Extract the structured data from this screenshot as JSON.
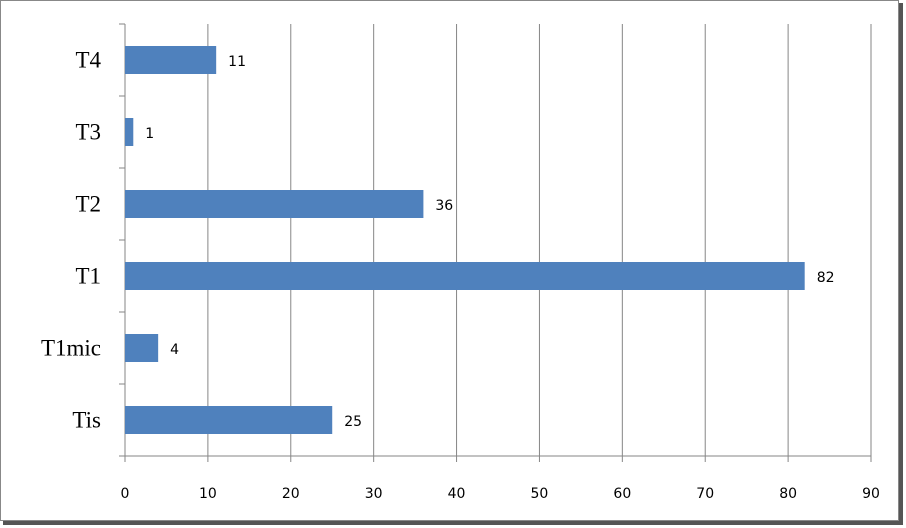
{
  "chart_data": {
    "type": "bar",
    "orientation": "horizontal",
    "categories": [
      "Tis",
      "T1mic",
      "T1",
      "T2",
      "T3",
      "T4"
    ],
    "values": [
      25,
      4,
      82,
      36,
      1,
      11
    ],
    "color": "#4f81bd",
    "xlim": [
      0,
      90
    ],
    "xticks": [
      0,
      10,
      20,
      30,
      40,
      50,
      60,
      70,
      80,
      90
    ],
    "grid": true
  }
}
